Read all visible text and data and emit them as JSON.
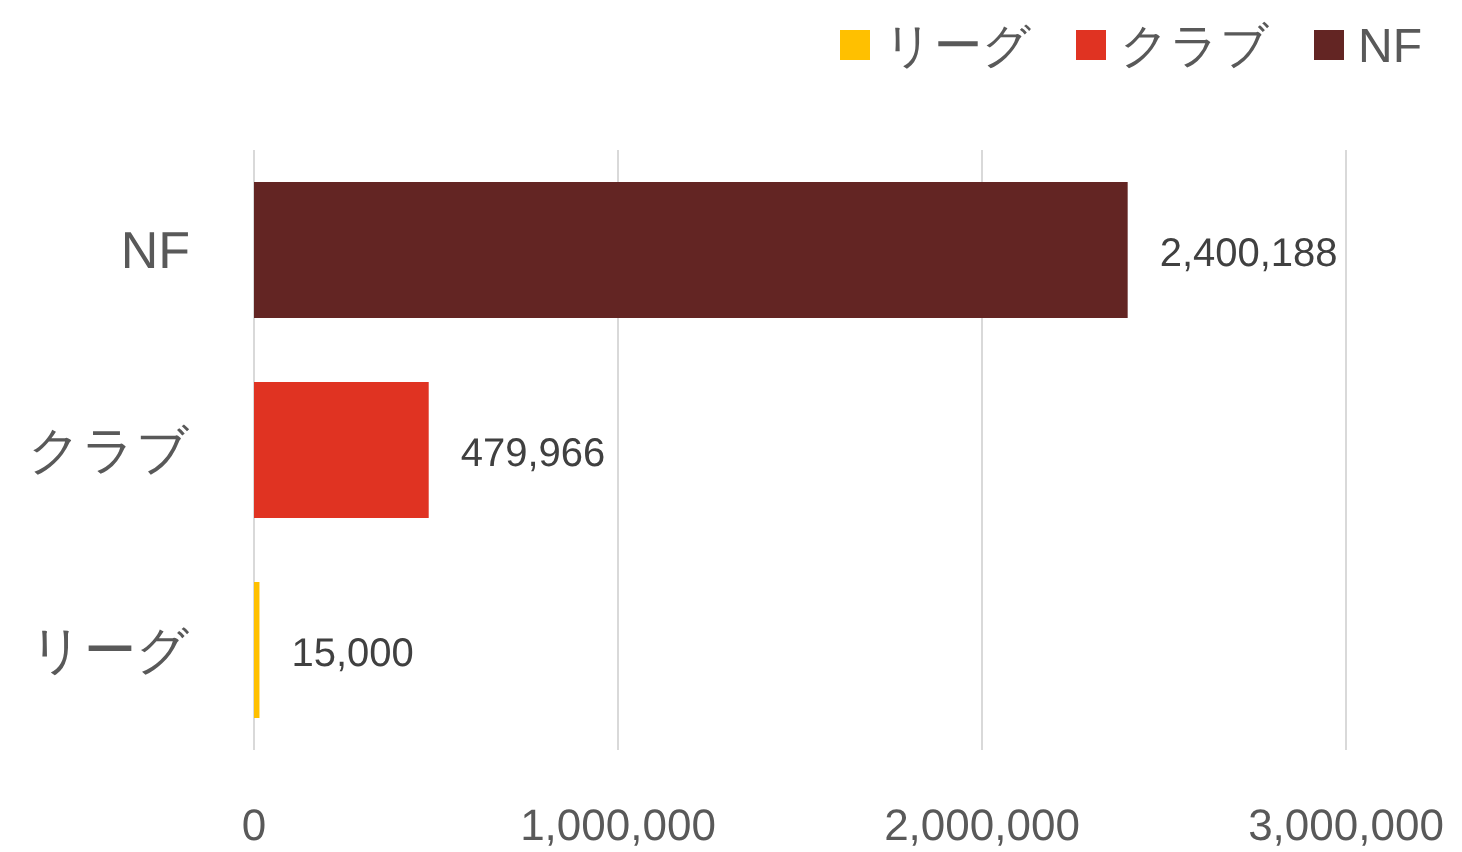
{
  "chart_data": {
    "type": "bar",
    "orientation": "horizontal",
    "categories": [
      "NF",
      "クラブ",
      "リーグ"
    ],
    "series": [
      {
        "name": "リーグ",
        "color": "#ffc000",
        "values": [
          null,
          null,
          15000
        ],
        "value_labels": [
          null,
          null,
          "15,000"
        ]
      },
      {
        "name": "クラブ",
        "color": "#e03322",
        "values": [
          null,
          479966,
          null
        ],
        "value_labels": [
          null,
          "479,966",
          null
        ]
      },
      {
        "name": "NF",
        "color": "#632523",
        "values": [
          2400188,
          null,
          null
        ],
        "value_labels": [
          "2,400,188",
          null,
          null
        ]
      }
    ],
    "xlim": [
      0,
      3000000
    ],
    "xticks": [
      0,
      {
        "value": 1000000,
        "label": "1,000,000"
      },
      {
        "value": 2000000,
        "label": "2,000,000"
      },
      {
        "value": 3000000,
        "label": "3,000,000"
      }
    ],
    "grid": "x",
    "legend": "top right"
  }
}
